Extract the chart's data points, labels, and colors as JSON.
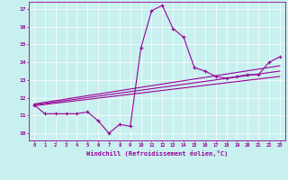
{
  "xlabel": "Windchill (Refroidissement éolien,°C)",
  "bg_color": "#c8f0ee",
  "line_color": "#990099",
  "ylim": [
    9.6,
    17.4
  ],
  "xlim": [
    -0.5,
    23.5
  ],
  "yticks": [
    10,
    11,
    12,
    13,
    14,
    15,
    16,
    17
  ],
  "xticks": [
    0,
    1,
    2,
    3,
    4,
    5,
    6,
    7,
    8,
    9,
    10,
    11,
    12,
    13,
    14,
    15,
    16,
    17,
    18,
    19,
    20,
    21,
    22,
    23
  ],
  "series1_x": [
    0,
    1,
    2,
    3,
    4,
    5,
    6,
    7,
    8,
    9,
    10,
    11,
    12,
    13,
    14,
    15,
    16,
    17,
    18,
    19,
    20,
    21,
    22,
    23
  ],
  "series1_y": [
    11.6,
    11.1,
    11.1,
    11.1,
    11.1,
    11.2,
    10.7,
    10.0,
    10.5,
    10.4,
    14.8,
    16.9,
    17.2,
    15.9,
    15.4,
    13.7,
    13.5,
    13.2,
    13.1,
    13.2,
    13.3,
    13.3,
    14.0,
    14.3
  ],
  "trend1_x0": 11.55,
  "trend1_x23": 13.2,
  "trend2_x0": 11.6,
  "trend2_x23": 13.5,
  "trend3_x0": 11.65,
  "trend3_x23": 13.8
}
